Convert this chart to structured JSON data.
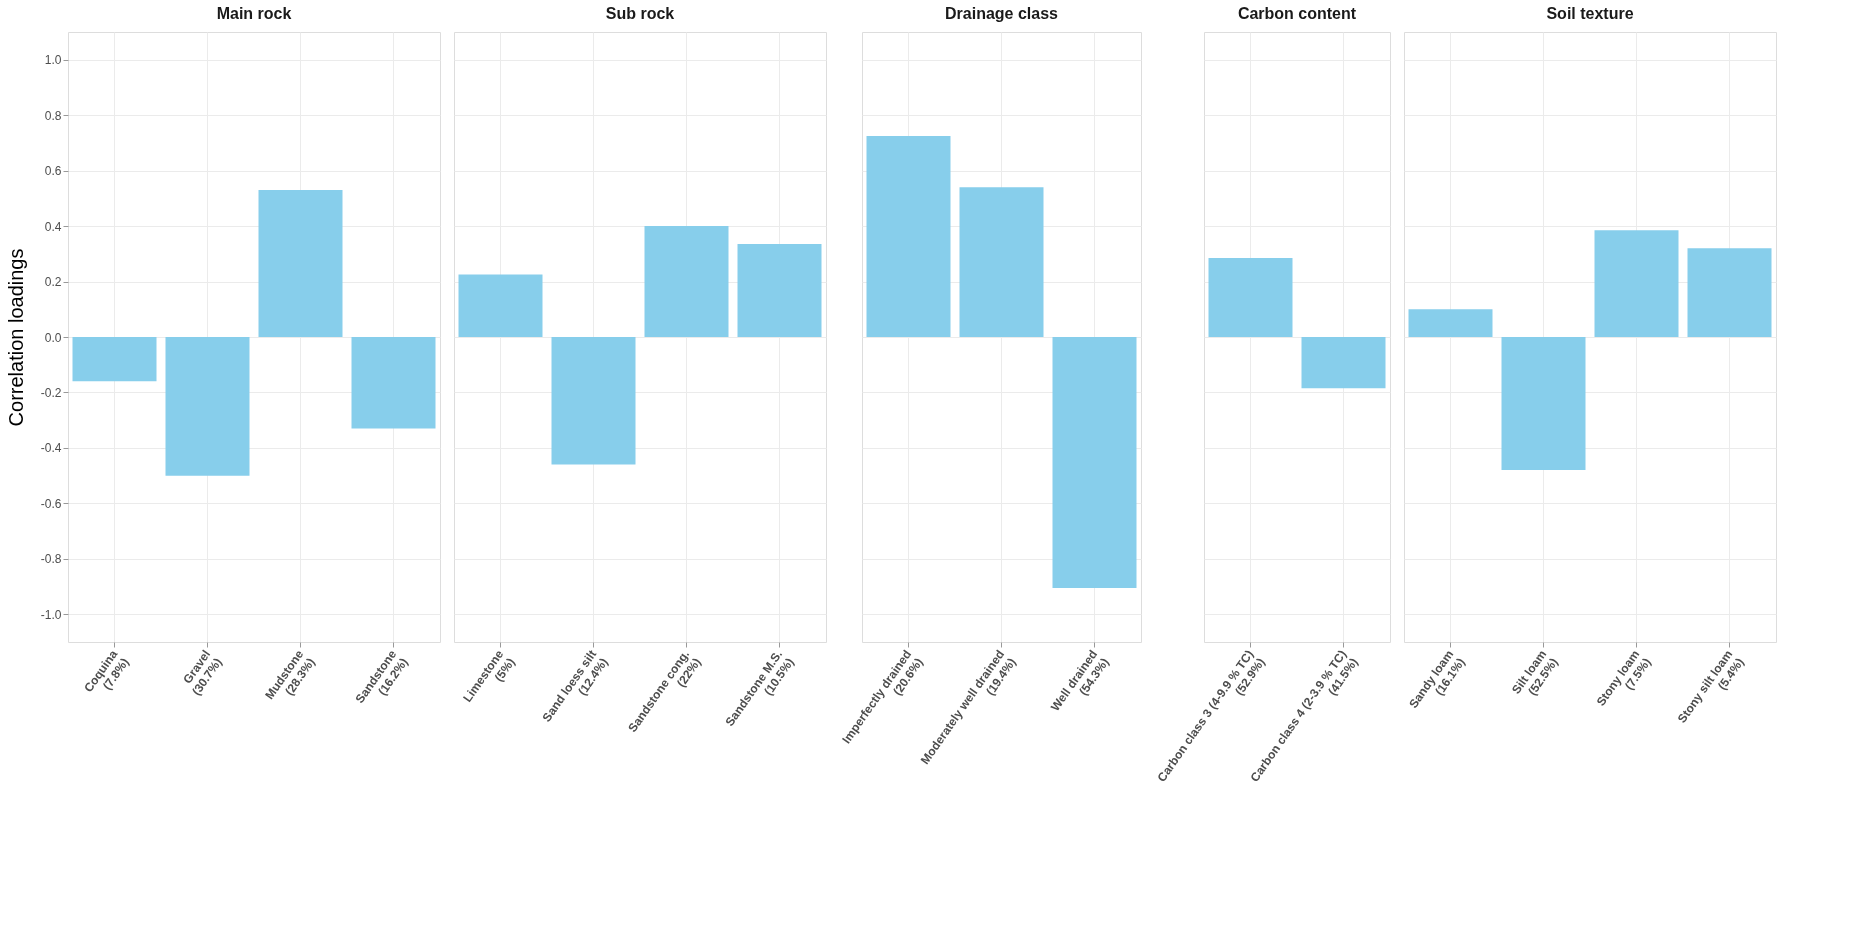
{
  "chart_data": [
    {
      "type": "bar",
      "title": "Main rock",
      "ylabel": "Correlation loadings",
      "categories": [
        "Coquina\n(7.8%)",
        "Gravel\n(30.7%)",
        "Mudstone\n(28.3%)",
        "Sandstone\n(16.2%)"
      ],
      "values": [
        -0.16,
        -0.5,
        0.53,
        -0.33
      ],
      "color": "#87ceeb",
      "ylim": [
        -1.1,
        1.1
      ],
      "yticks": [
        {
          "value": -1,
          "label": "-1.0"
        },
        -0.8,
        -0.6,
        -0.4,
        -0.2,
        {
          "value": 0,
          "label": "0.0"
        },
        0.2,
        0.4,
        0.6,
        0.8,
        {
          "value": 1,
          "label": "1.0"
        }
      ],
      "grid": true
    },
    {
      "type": "bar",
      "title": "Sub rock",
      "categories": [
        "Limestone\n(5%)",
        "Sand loess silt\n(12.4%)",
        "Sandstone cong.\n(22%)",
        "Sandstone M.S.\n(10.5%)"
      ],
      "values": [
        0.225,
        -0.46,
        0.4,
        0.335
      ],
      "color": "#87ceeb",
      "ylim": [
        -1.1,
        1.1
      ],
      "grid": true,
      "tick_labels": "x"
    },
    {
      "type": "bar",
      "title": "Drainage class",
      "categories": [
        "Imperfectly drained\n(20.6%)",
        "Moderately well drained\n(19.4%)",
        "Well drained\n(54.3%)"
      ],
      "values": [
        0.725,
        0.54,
        -0.905
      ],
      "color": "#87ceeb",
      "ylim": [
        -1.1,
        1.1
      ],
      "grid": true,
      "tick_labels": "x"
    },
    {
      "type": "bar",
      "title": "Carbon content",
      "categories": [
        "Carbon class 3 (4-9.9 % TC)\n(52.9%)",
        "Carbon class 4 (2-3.9 % TC)\n(41.5%)"
      ],
      "values": [
        0.285,
        -0.185
      ],
      "color": "#87ceeb",
      "ylim": [
        -1.1,
        1.1
      ],
      "grid": true,
      "tick_labels": "x"
    },
    {
      "type": "bar",
      "title": "Soil texture",
      "categories": [
        "Sandy loam\n(16.1%)",
        "Silt loam\n(52.5%)",
        "Stony loam\n(7.5%)",
        "Stony silt loam\n(5.4%)"
      ],
      "values": [
        0.1,
        -0.48,
        0.385,
        0.32
      ],
      "color": "#87ceeb",
      "ylim": [
        -1.1,
        1.1
      ],
      "grid": true,
      "tick_labels": "x"
    }
  ]
}
